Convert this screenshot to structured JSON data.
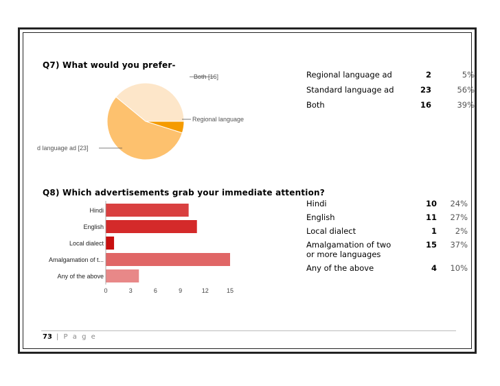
{
  "q7": {
    "title": "Q7) What would you prefer-",
    "pie_labels": [
      "Both [16]",
      "Regional language",
      "d language ad [23]"
    ],
    "rows": [
      {
        "label": "Regional language ad",
        "count": "2",
        "pct": "5%"
      },
      {
        "label": "Standard language ad",
        "count": "23",
        "pct": "56%"
      },
      {
        "label": "Both",
        "count": "16",
        "pct": "39%"
      }
    ]
  },
  "q8": {
    "title": "Q8) Which advertisements grab your immediate attention?",
    "rows": [
      {
        "label": "Hindi",
        "count": "10",
        "pct": "24%"
      },
      {
        "label": "English",
        "count": "11",
        "pct": "27%"
      },
      {
        "label": "Local dialect",
        "count": "1",
        "pct": "2%"
      },
      {
        "label": "Amalgamation of two",
        "label2": "or more languages",
        "count": "15",
        "pct": "37%"
      },
      {
        "label": "Any of the above",
        "count": "4",
        "pct": "10%"
      }
    ]
  },
  "chart_data": [
    {
      "type": "pie",
      "categories": [
        "Both",
        "Regional language",
        "Standard language ad"
      ],
      "values": [
        16,
        2,
        23
      ],
      "colors": [
        "#fde6c9",
        "#f59b00",
        "#fdc16e"
      ]
    },
    {
      "type": "bar",
      "categories": [
        "Hindi",
        "English",
        "Local dialect",
        "Amalgamation of t...",
        "Any of the above"
      ],
      "values": [
        10,
        11,
        1,
        15,
        4
      ],
      "xticks": [
        "0",
        "3",
        "6",
        "9",
        "12",
        "15"
      ],
      "xlim": [
        0,
        15
      ],
      "colors": [
        "#d94040",
        "#d42a2a",
        "#c80f0f",
        "#e06666",
        "#e88888"
      ]
    }
  ],
  "footer": {
    "page_number": "73",
    "page_text": "| P a g e"
  }
}
